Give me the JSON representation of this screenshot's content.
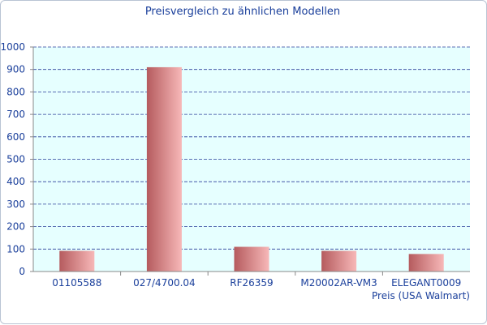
{
  "chart_data": {
    "type": "bar",
    "title": "Preisvergleich zu ähnlichen Modellen",
    "xlabel": "Preis (USA Walmart)",
    "ylabel": "",
    "categories": [
      "01105588",
      "027/4700.04",
      "RF26359",
      "M20002AR-VM3",
      "ELEGANT0009"
    ],
    "values": [
      92,
      910,
      110,
      92,
      78
    ],
    "ylim": [
      0,
      1000
    ],
    "yticks": [
      "0",
      "100",
      "200",
      "300",
      "400",
      "500",
      "600",
      "700",
      "800",
      "900",
      "1000"
    ],
    "grid": true,
    "legend": "none"
  },
  "colors": {
    "bar_dark": "#b55b5e",
    "bar_light": "#f7b8b8",
    "plot_bg": "#e6ffff",
    "grid": "#2a3f9a",
    "text": "#1a3f9b",
    "axis": "#888888"
  }
}
